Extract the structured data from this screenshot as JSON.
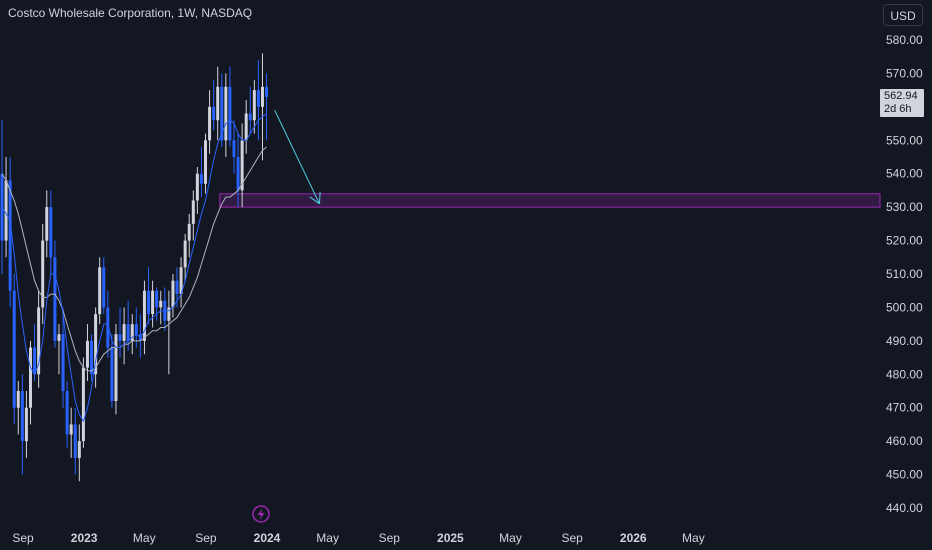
{
  "header": {
    "title": "Costco Wholesale Corporation, 1W, NASDAQ",
    "currency": "USD"
  },
  "last_price": {
    "value": "562.94",
    "countdown": "2d 6h"
  },
  "colors": {
    "background": "#131722",
    "up_candle": "#d1d4dc",
    "down_candle": "#2962ff",
    "ma_fast": "#2962ff",
    "ma_slow": "#b2b5be",
    "zone_border": "#9c27b0",
    "zone_fill": "#4a1f5e",
    "arrow": "#4dd0e1",
    "lightning": "#9c27b0",
    "axis_text": "#d1d4dc"
  },
  "chart_data": {
    "type": "candlestick",
    "y_axis": {
      "position": "right",
      "ticks": [
        580,
        570,
        560,
        550,
        540,
        530,
        520,
        510,
        500,
        490,
        480,
        470,
        460,
        450,
        440
      ],
      "tick_labels": [
        "580.00",
        "570.00",
        "",
        "550.00",
        "540.00",
        "530.00",
        "520.00",
        "510.00",
        "500.00",
        "490.00",
        "480.00",
        "470.00",
        "460.00",
        "450.00",
        "440.00"
      ],
      "ylim": [
        436,
        583
      ]
    },
    "x_axis": {
      "labels": [
        {
          "label": "Sep",
          "date": "2022-09-01",
          "bold": false
        },
        {
          "label": "2023",
          "date": "2023-01-01",
          "bold": true
        },
        {
          "label": "May",
          "date": "2023-05-01",
          "bold": false
        },
        {
          "label": "Sep",
          "date": "2023-09-01",
          "bold": false
        },
        {
          "label": "2024",
          "date": "2024-01-01",
          "bold": true
        },
        {
          "label": "May",
          "date": "2024-05-01",
          "bold": false
        },
        {
          "label": "Sep",
          "date": "2024-09-01",
          "bold": false
        },
        {
          "label": "2025",
          "date": "2025-01-01",
          "bold": true
        },
        {
          "label": "May",
          "date": "2025-05-01",
          "bold": false
        },
        {
          "label": "Sep",
          "date": "2025-09-01",
          "bold": false
        },
        {
          "label": "2026",
          "date": "2026-01-01",
          "bold": true
        },
        {
          "label": "May",
          "date": "2026-05-01",
          "bold": false
        }
      ]
    },
    "candles": [
      {
        "o": 540,
        "h": 556,
        "l": 510,
        "c": 520
      },
      {
        "o": 520,
        "h": 545,
        "l": 515,
        "c": 538
      },
      {
        "o": 538,
        "h": 545,
        "l": 500,
        "c": 505
      },
      {
        "o": 505,
        "h": 510,
        "l": 465,
        "c": 470
      },
      {
        "o": 470,
        "h": 478,
        "l": 462,
        "c": 475
      },
      {
        "o": 475,
        "h": 480,
        "l": 450,
        "c": 460
      },
      {
        "o": 460,
        "h": 475,
        "l": 455,
        "c": 470
      },
      {
        "o": 470,
        "h": 490,
        "l": 465,
        "c": 488
      },
      {
        "o": 488,
        "h": 495,
        "l": 478,
        "c": 480
      },
      {
        "o": 480,
        "h": 505,
        "l": 476,
        "c": 500
      },
      {
        "o": 500,
        "h": 525,
        "l": 495,
        "c": 520
      },
      {
        "o": 520,
        "h": 535,
        "l": 515,
        "c": 530
      },
      {
        "o": 530,
        "h": 535,
        "l": 510,
        "c": 515
      },
      {
        "o": 515,
        "h": 520,
        "l": 488,
        "c": 490
      },
      {
        "o": 490,
        "h": 495,
        "l": 480,
        "c": 492
      },
      {
        "o": 492,
        "h": 500,
        "l": 470,
        "c": 475
      },
      {
        "o": 475,
        "h": 478,
        "l": 458,
        "c": 462
      },
      {
        "o": 462,
        "h": 470,
        "l": 455,
        "c": 465
      },
      {
        "o": 465,
        "h": 470,
        "l": 450,
        "c": 455
      },
      {
        "o": 455,
        "h": 465,
        "l": 448,
        "c": 460
      },
      {
        "o": 460,
        "h": 485,
        "l": 458,
        "c": 482
      },
      {
        "o": 482,
        "h": 495,
        "l": 478,
        "c": 490
      },
      {
        "o": 490,
        "h": 492,
        "l": 478,
        "c": 480
      },
      {
        "o": 480,
        "h": 500,
        "l": 476,
        "c": 498
      },
      {
        "o": 498,
        "h": 515,
        "l": 495,
        "c": 512
      },
      {
        "o": 512,
        "h": 515,
        "l": 498,
        "c": 500
      },
      {
        "o": 500,
        "h": 505,
        "l": 485,
        "c": 488
      },
      {
        "o": 488,
        "h": 492,
        "l": 470,
        "c": 472
      },
      {
        "o": 472,
        "h": 495,
        "l": 468,
        "c": 492
      },
      {
        "o": 492,
        "h": 500,
        "l": 485,
        "c": 490
      },
      {
        "o": 490,
        "h": 500,
        "l": 483,
        "c": 495
      },
      {
        "o": 495,
        "h": 502,
        "l": 487,
        "c": 490
      },
      {
        "o": 490,
        "h": 498,
        "l": 486,
        "c": 495
      },
      {
        "o": 495,
        "h": 500,
        "l": 488,
        "c": 492
      },
      {
        "o": 492,
        "h": 498,
        "l": 485,
        "c": 490
      },
      {
        "o": 490,
        "h": 508,
        "l": 486,
        "c": 505
      },
      {
        "o": 505,
        "h": 512,
        "l": 495,
        "c": 498
      },
      {
        "o": 498,
        "h": 508,
        "l": 494,
        "c": 505
      },
      {
        "o": 505,
        "h": 506,
        "l": 496,
        "c": 500
      },
      {
        "o": 500,
        "h": 505,
        "l": 495,
        "c": 502
      },
      {
        "o": 502,
        "h": 506,
        "l": 493,
        "c": 496
      },
      {
        "o": 496,
        "h": 505,
        "l": 480,
        "c": 500
      },
      {
        "o": 500,
        "h": 510,
        "l": 497,
        "c": 508
      },
      {
        "o": 508,
        "h": 512,
        "l": 500,
        "c": 504
      },
      {
        "o": 504,
        "h": 515,
        "l": 500,
        "c": 512
      },
      {
        "o": 512,
        "h": 522,
        "l": 508,
        "c": 520
      },
      {
        "o": 520,
        "h": 528,
        "l": 515,
        "c": 525
      },
      {
        "o": 525,
        "h": 535,
        "l": 520,
        "c": 532
      },
      {
        "o": 532,
        "h": 542,
        "l": 528,
        "c": 540
      },
      {
        "o": 540,
        "h": 548,
        "l": 533,
        "c": 537
      },
      {
        "o": 537,
        "h": 552,
        "l": 534,
        "c": 550
      },
      {
        "o": 550,
        "h": 565,
        "l": 546,
        "c": 560
      },
      {
        "o": 560,
        "h": 568,
        "l": 553,
        "c": 556
      },
      {
        "o": 556,
        "h": 572,
        "l": 550,
        "c": 566
      },
      {
        "o": 566,
        "h": 570,
        "l": 548,
        "c": 550
      },
      {
        "o": 550,
        "h": 570,
        "l": 545,
        "c": 566
      },
      {
        "o": 566,
        "h": 572,
        "l": 548,
        "c": 550
      },
      {
        "o": 550,
        "h": 556,
        "l": 540,
        "c": 545
      },
      {
        "o": 545,
        "h": 552,
        "l": 530,
        "c": 535
      },
      {
        "o": 535,
        "h": 555,
        "l": 530,
        "c": 550
      },
      {
        "o": 550,
        "h": 562,
        "l": 546,
        "c": 558
      },
      {
        "o": 558,
        "h": 566,
        "l": 552,
        "c": 556
      },
      {
        "o": 556,
        "h": 568,
        "l": 552,
        "c": 565
      },
      {
        "o": 565,
        "h": 574,
        "l": 550,
        "c": 560
      },
      {
        "o": 560,
        "h": 576,
        "l": 544,
        "c": 566
      },
      {
        "o": 566,
        "h": 570,
        "l": 550,
        "c": 562.94
      }
    ],
    "ma_fast": [
      530,
      528,
      526,
      516,
      504,
      495,
      487,
      482,
      480,
      483,
      490,
      502,
      510,
      510,
      505,
      498,
      488,
      480,
      472,
      468,
      466,
      470,
      476,
      484,
      490,
      495,
      495,
      490,
      488,
      488,
      489,
      490,
      491,
      492,
      491,
      493,
      496,
      497,
      498,
      499,
      499,
      499,
      500,
      502,
      504,
      508,
      513,
      518,
      523,
      528,
      532,
      538,
      544,
      549,
      552,
      555,
      556,
      555,
      552,
      550,
      550,
      552,
      554,
      556,
      557,
      558
    ],
    "ma_slow": [
      540,
      538,
      535,
      532,
      528,
      523,
      518,
      513,
      508,
      505,
      503,
      503,
      504,
      504,
      502,
      499,
      495,
      491,
      487,
      484,
      482,
      481,
      481,
      482,
      484,
      486,
      487,
      488,
      488,
      488,
      489,
      489,
      490,
      490,
      490,
      491,
      492,
      493,
      493,
      494,
      494,
      495,
      496,
      497,
      499,
      501,
      503,
      506,
      509,
      513,
      517,
      521,
      525,
      528,
      531,
      533,
      533,
      534,
      535,
      537,
      539,
      541,
      543,
      545,
      547,
      548
    ],
    "zone": {
      "top": 534,
      "bottom": 530,
      "start_bar": 54
    },
    "arrow": {
      "from_bar": 67,
      "from_price": 559,
      "to_bar": 78,
      "to_price": 531
    }
  }
}
